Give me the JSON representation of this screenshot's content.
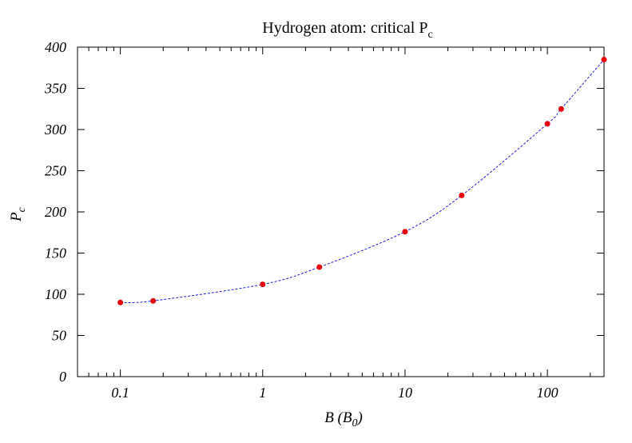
{
  "chart_data": {
    "type": "line",
    "title": "Hydrogen atom: critical P",
    "title_subscript": "c",
    "xlabel": "B (B",
    "xlabel_subscript": "0",
    "xlabel_close": ")",
    "ylabel": "P",
    "ylabel_subscript": "c",
    "xscale": "log",
    "xlim": [
      0.05,
      250
    ],
    "ylim": [
      0,
      400
    ],
    "x_ticks": [
      0.1,
      1,
      10,
      100
    ],
    "x_tick_labels": [
      "0.1",
      "1",
      "10",
      "100"
    ],
    "y_ticks": [
      0,
      50,
      100,
      150,
      200,
      250,
      300,
      350,
      400
    ],
    "y_tick_labels": [
      "0",
      "50",
      "100",
      "150",
      "200",
      "250",
      "300",
      "350",
      "400"
    ],
    "grid": false,
    "legend": "none",
    "series": [
      {
        "x": [
          0.1,
          0.17,
          1,
          2.5,
          10,
          25,
          100,
          125,
          250
        ],
        "y": [
          90,
          92,
          112,
          133,
          176,
          220,
          307,
          325,
          385
        ],
        "marker_color": "#e8000b",
        "line_color": "#1f1fe0",
        "line_style": "dashed"
      }
    ]
  }
}
